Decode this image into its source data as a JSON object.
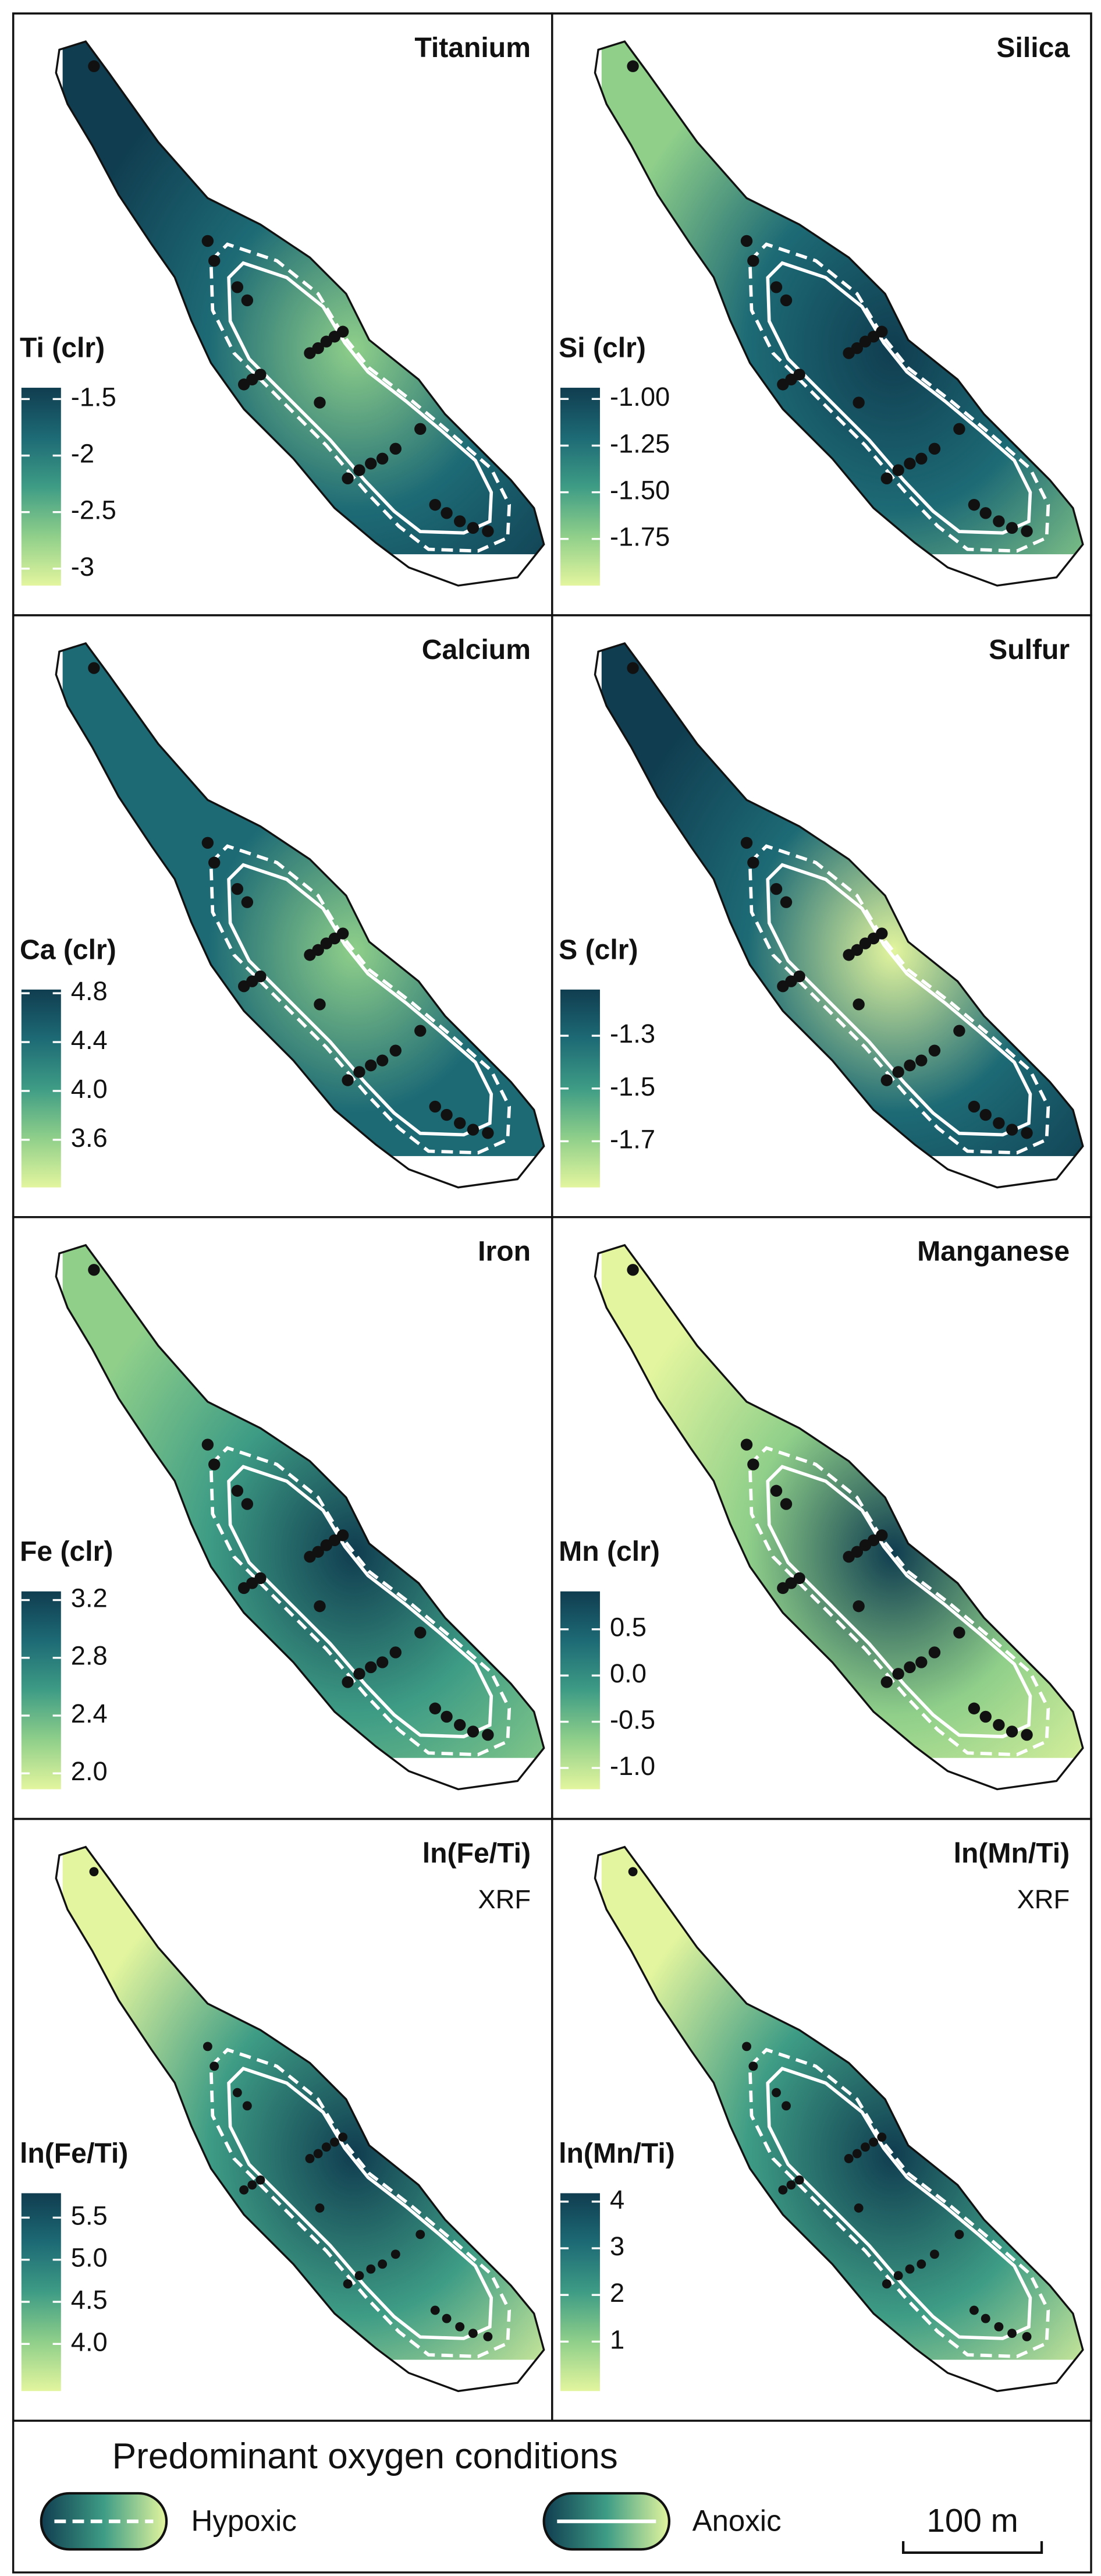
{
  "colormap": [
    "#e3f59e",
    "#8fcf8a",
    "#3e9c85",
    "#1d6a75",
    "#103d50"
  ],
  "panels": [
    {
      "title": "Titanium",
      "legend": {
        "title": "Ti (clr)",
        "lim": [
          -3.15,
          -1.4
        ],
        "ticks": [
          -1.5,
          -2.0,
          -2.5,
          -3.0
        ]
      }
    },
    {
      "title": "Silica",
      "legend": {
        "title": "Si (clr)",
        "lim": [
          -2.0,
          -0.94
        ],
        "ticks": [
          {
            "value": -1.0,
            "label": "-1.00"
          },
          -1.25,
          {
            "value": -1.5,
            "label": "-1.50"
          },
          -1.75
        ]
      }
    },
    {
      "title": "Calcium",
      "legend": {
        "title": "Ca (clr)",
        "lim": [
          3.21,
          4.83
        ],
        "ticks": [
          4.8,
          4.4,
          {
            "value": 4.0,
            "label": "4.0"
          },
          3.6
        ]
      }
    },
    {
      "title": "Sulfur",
      "legend": {
        "title": "S (clr)",
        "lim": [
          -1.875,
          -1.125
        ],
        "ticks": [
          -1.3,
          -1.5,
          -1.7
        ]
      }
    },
    {
      "title": "Iron",
      "legend": {
        "title": "Fe (clr)",
        "lim": [
          1.89,
          3.26
        ],
        "ticks": [
          3.2,
          2.8,
          2.4,
          {
            "value": 2.0,
            "label": "2.0"
          }
        ]
      }
    },
    {
      "title": "Manganese",
      "legend": {
        "title": "Mn (clr)",
        "lim": [
          -1.23,
          0.91
        ],
        "ticks": [
          0.5,
          {
            "value": 0.0,
            "label": "0.0"
          },
          -0.5,
          {
            "value": -1.0,
            "label": "-1.0"
          }
        ]
      }
    },
    {
      "title": "ln(Fe/Ti)",
      "subtitle": "XRF",
      "legend": {
        "title": "ln(Fe/Ti)",
        "lim": [
          3.44,
          5.79
        ],
        "ticks": [
          5.5,
          {
            "value": 5.0,
            "label": "5.0"
          },
          4.5,
          {
            "value": 4.0,
            "label": "4.0"
          }
        ]
      }
    },
    {
      "title": "ln(Mn/Ti)",
      "subtitle": "XRF",
      "legend": {
        "title": "ln(Mn/Ti)",
        "lim": [
          -0.06,
          4.18
        ],
        "ticks": [
          4,
          3,
          2,
          1
        ]
      }
    }
  ],
  "legend": {
    "title": "Predominant oxygen conditions",
    "items": [
      {
        "label": "Hypoxic"
      },
      {
        "label": "Anoxic"
      }
    ]
  },
  "scale_bar": {
    "label": "100 m"
  }
}
